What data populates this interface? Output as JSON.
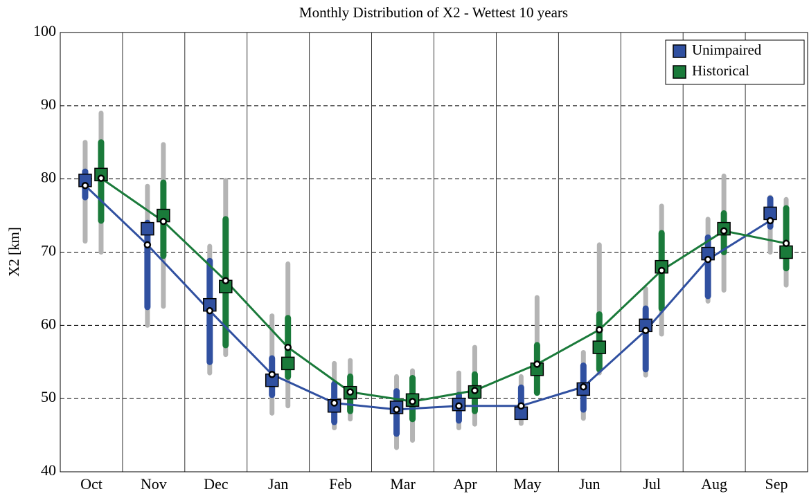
{
  "chart_data": {
    "type": "range_line",
    "title": "Monthly Distribution of X2 - Wettest 10 years",
    "y_label": "X2 [km]",
    "categories": [
      "Oct",
      "Nov",
      "Dec",
      "Jan",
      "Feb",
      "Mar",
      "Apr",
      "May",
      "Jun",
      "Jul",
      "Aug",
      "Sep"
    ],
    "ylim": [
      40,
      100
    ],
    "yticks": [
      40,
      50,
      60,
      70,
      80,
      90,
      100
    ],
    "grid": true,
    "legend": "upper right",
    "range_color": "#b4b4b4",
    "series": [
      {
        "name": "Unimpaired",
        "color": "#3050a0",
        "whisker_low": [
          71.5,
          60,
          53.5,
          48,
          46,
          43.3,
          46,
          46.6,
          47.3,
          53.2,
          63.3,
          70
        ],
        "whisker_high": [
          85,
          79,
          70.8,
          61.3,
          54.8,
          53,
          53.5,
          53,
          56.3,
          65,
          74.5,
          77.5
        ],
        "box_low": [
          77.5,
          62.5,
          55,
          50.5,
          46.8,
          45.2,
          47,
          47.8,
          48.5,
          54,
          64,
          73.5
        ],
        "box_high": [
          81,
          74,
          68.8,
          55.5,
          52,
          51,
          50.5,
          51.5,
          54.5,
          62.3,
          72,
          77.3
        ],
        "square": [
          79.8,
          73.2,
          62.8,
          52.5,
          49,
          48.8,
          49.2,
          48,
          51.3,
          60,
          69.8,
          75.3
        ],
        "circle": [
          79.1,
          71,
          62,
          53.3,
          49.4,
          48.5,
          49,
          49,
          51.6,
          59.3,
          69,
          74.3
        ]
      },
      {
        "name": "Historical",
        "color": "#1a7a3a",
        "whisker_low": [
          70,
          62.6,
          56,
          49,
          47.2,
          44.3,
          46.5,
          50.8,
          53.5,
          58.8,
          64.8,
          65.5
        ],
        "whisker_high": [
          89,
          84.7,
          79.8,
          68.4,
          55.2,
          53.8,
          57,
          63.8,
          71,
          76.3,
          80.4,
          77.2
        ],
        "box_low": [
          74.3,
          69.5,
          57.3,
          53,
          48.3,
          47.2,
          48.3,
          50.8,
          54,
          62.3,
          70,
          67.8
        ],
        "box_high": [
          85,
          79.5,
          74.5,
          61,
          53,
          52.8,
          53.3,
          57.3,
          61.5,
          72.6,
          75.3,
          76
        ],
        "square": [
          80.6,
          75,
          65.3,
          54.8,
          50.8,
          49.8,
          50.9,
          54,
          57,
          68,
          73.2,
          70
        ],
        "circle": [
          80.1,
          74.2,
          66.1,
          57,
          50.9,
          49.6,
          51.1,
          54.7,
          59.4,
          67.5,
          72.9,
          71.2
        ]
      }
    ]
  }
}
